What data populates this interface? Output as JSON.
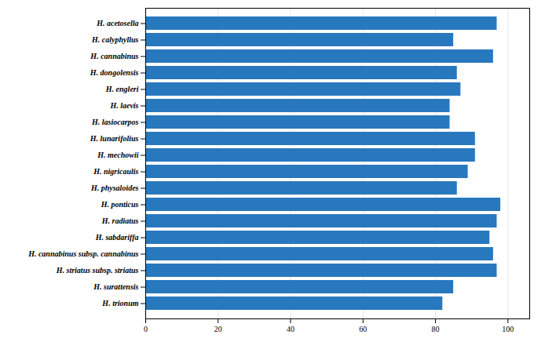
{
  "chart_data": {
    "type": "bar",
    "orientation": "horizontal",
    "categories": [
      "H. acetosella",
      "H. calyphyllus",
      "H. cannabinus",
      "H. dongolensis",
      "H. engleri",
      "H. laevis",
      "H. lasiocarpos",
      "H. lunarifolius",
      "H. mechowii",
      "H. nigricaulis",
      "H. physaloides",
      "H. ponticus",
      "H. radiatus",
      "H. sabdariffa",
      "H. cannabinus subsp. cannabinus",
      "H. striatus subsp. striatus",
      "H. surattensis",
      "H. trionum"
    ],
    "values": [
      97,
      85,
      96,
      86,
      87,
      84,
      84,
      91,
      91,
      89,
      86,
      98,
      97,
      95,
      96,
      97,
      85,
      82
    ],
    "color": "#2878BE",
    "xlim": [
      0,
      106
    ],
    "xticks": [
      0,
      20,
      40,
      60,
      80,
      100
    ],
    "grid": true
  }
}
